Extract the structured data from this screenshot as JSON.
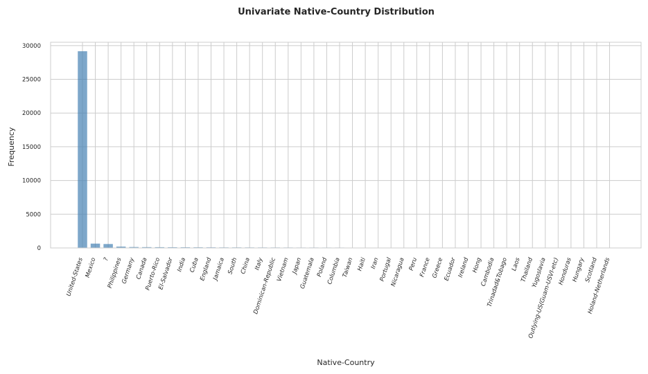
{
  "chart_data": {
    "type": "bar",
    "title": "Univariate Native-Country Distribution",
    "xlabel": "Native-Country",
    "ylabel": "Frequency",
    "ylim": [
      0,
      30500
    ],
    "yticks": [
      0,
      5000,
      10000,
      15000,
      20000,
      25000,
      30000
    ],
    "grid": true,
    "bar_color": "#4682b4",
    "categories": [
      "United-States",
      "Mexico",
      "?",
      "Philippines",
      "Germany",
      "Canada",
      "Puerto-Rico",
      "El-Salvador",
      "India",
      "Cuba",
      "England",
      "Jamaica",
      "South",
      "China",
      "Italy",
      "Dominican-Republic",
      "Vietnam",
      "Japan",
      "Guatemala",
      "Poland",
      "Columbia",
      "Taiwan",
      "Haiti",
      "Iran",
      "Portugal",
      "Nicaragua",
      "Peru",
      "France",
      "Greece",
      "Ecuador",
      "Ireland",
      "Hong",
      "Cambodia",
      "Trinadad&Tobago",
      "Laos",
      "Thailand",
      "Yugoslavia",
      "Outlying-US(Guam-USVI-etc)",
      "Honduras",
      "Hungary",
      "Scotland",
      "Holand-Netherlands"
    ],
    "values": [
      29170,
      643,
      583,
      198,
      137,
      121,
      114,
      106,
      100,
      95,
      90,
      81,
      80,
      75,
      73,
      70,
      67,
      62,
      64,
      60,
      59,
      51,
      44,
      43,
      37,
      34,
      31,
      29,
      29,
      28,
      24,
      20,
      19,
      19,
      18,
      18,
      16,
      14,
      13,
      13,
      12,
      1
    ]
  }
}
